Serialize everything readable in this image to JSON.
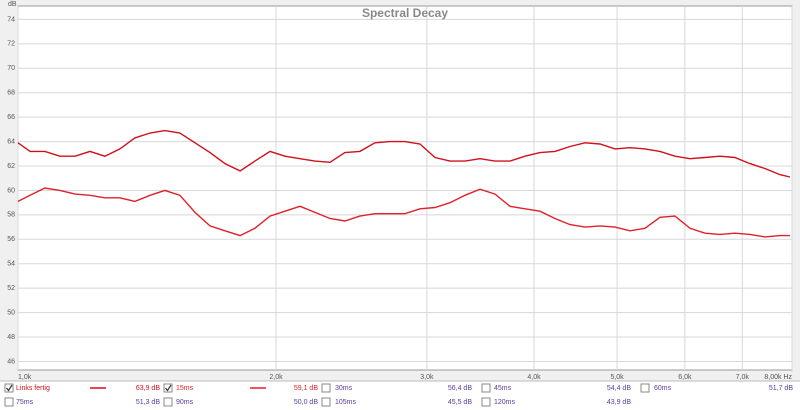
{
  "chart_data": {
    "type": "line",
    "title": "Spectral Decay",
    "y_unit": "dB",
    "log_x": true,
    "grid": true,
    "xlim": [
      1000,
      8000
    ],
    "ylim": [
      45.3,
      75.1
    ],
    "xticks": [
      {
        "value": 1000,
        "label": "1,0k"
      },
      {
        "value": 2000,
        "label": "2,0k"
      },
      {
        "value": 3000,
        "label": "3,0k"
      },
      {
        "value": 4000,
        "label": "4,0k"
      },
      {
        "value": 5000,
        "label": "5,0k"
      },
      {
        "value": 6000,
        "label": "6,0k"
      },
      {
        "value": 7000,
        "label": "7,0k"
      },
      {
        "value": 8000,
        "label": "8,00k Hz"
      }
    ],
    "yticks": [
      46,
      48,
      50,
      52,
      54,
      56,
      58,
      60,
      62,
      64,
      66,
      68,
      70,
      72,
      74
    ],
    "x": [
      1000,
      1033,
      1075,
      1119,
      1166,
      1213,
      1263,
      1315,
      1369,
      1426,
      1484,
      1545,
      1609,
      1675,
      1744,
      1816,
      1890,
      1968,
      2049,
      2133,
      2221,
      2312,
      2407,
      2506,
      2609,
      2717,
      2828,
      2945,
      3066,
      3192,
      3323,
      3460,
      3602,
      3750,
      3904,
      4065,
      4232,
      4406,
      4587,
      4776,
      4972,
      5176,
      5389,
      5611,
      5842,
      6082,
      6332,
      6592,
      6863,
      7145,
      7439,
      7745,
      7955
    ],
    "series": [
      {
        "name": "Links fertig",
        "readout": "63,9 dB",
        "checked": true,
        "color": "#d0101a",
        "values": [
          63.9,
          63.2,
          63.2,
          62.8,
          62.8,
          63.2,
          62.8,
          63.4,
          64.3,
          64.7,
          64.9,
          64.7,
          63.9,
          63.1,
          62.2,
          61.6,
          62.4,
          63.2,
          62.8,
          62.6,
          62.4,
          62.3,
          63.1,
          63.2,
          63.9,
          64.0,
          64.0,
          63.8,
          62.7,
          62.4,
          62.4,
          62.6,
          62.4,
          62.4,
          62.8,
          63.1,
          63.2,
          63.6,
          63.9,
          63.8,
          63.4,
          63.5,
          63.4,
          63.2,
          62.8,
          62.6,
          62.7,
          62.8,
          62.7,
          62.2,
          61.8,
          61.3,
          61.1
        ]
      },
      {
        "name": "15ms",
        "readout": "59,1 dB",
        "checked": true,
        "color": "#e0202a",
        "values": [
          59.1,
          59.6,
          60.2,
          60.0,
          59.7,
          59.6,
          59.4,
          59.4,
          59.1,
          59.6,
          60.0,
          59.6,
          58.2,
          57.1,
          56.7,
          56.3,
          56.9,
          57.9,
          58.3,
          58.7,
          58.2,
          57.7,
          57.5,
          57.9,
          58.1,
          58.1,
          58.1,
          58.5,
          58.6,
          59.0,
          59.6,
          60.1,
          59.7,
          58.7,
          58.5,
          58.3,
          57.7,
          57.2,
          57.0,
          57.1,
          57.0,
          56.7,
          56.9,
          57.8,
          57.9,
          56.9,
          56.5,
          56.4,
          56.5,
          56.4,
          56.2,
          56.3,
          56.3
        ]
      }
    ],
    "other_entries": [
      {
        "name": "30ms",
        "readout": "56,4 dB",
        "checked": false
      },
      {
        "name": "45ms",
        "readout": "54,4 dB",
        "checked": false
      },
      {
        "name": "60ms",
        "readout": "51,7 dB",
        "checked": false
      },
      {
        "name": "75ms",
        "readout": "51,3 dB",
        "checked": false
      },
      {
        "name": "90ms",
        "readout": "50,0 dB",
        "checked": false
      },
      {
        "name": "105ms",
        "readout": "45,5 dB",
        "checked": false
      },
      {
        "name": "120ms",
        "readout": "43,9 dB",
        "checked": false
      }
    ]
  }
}
